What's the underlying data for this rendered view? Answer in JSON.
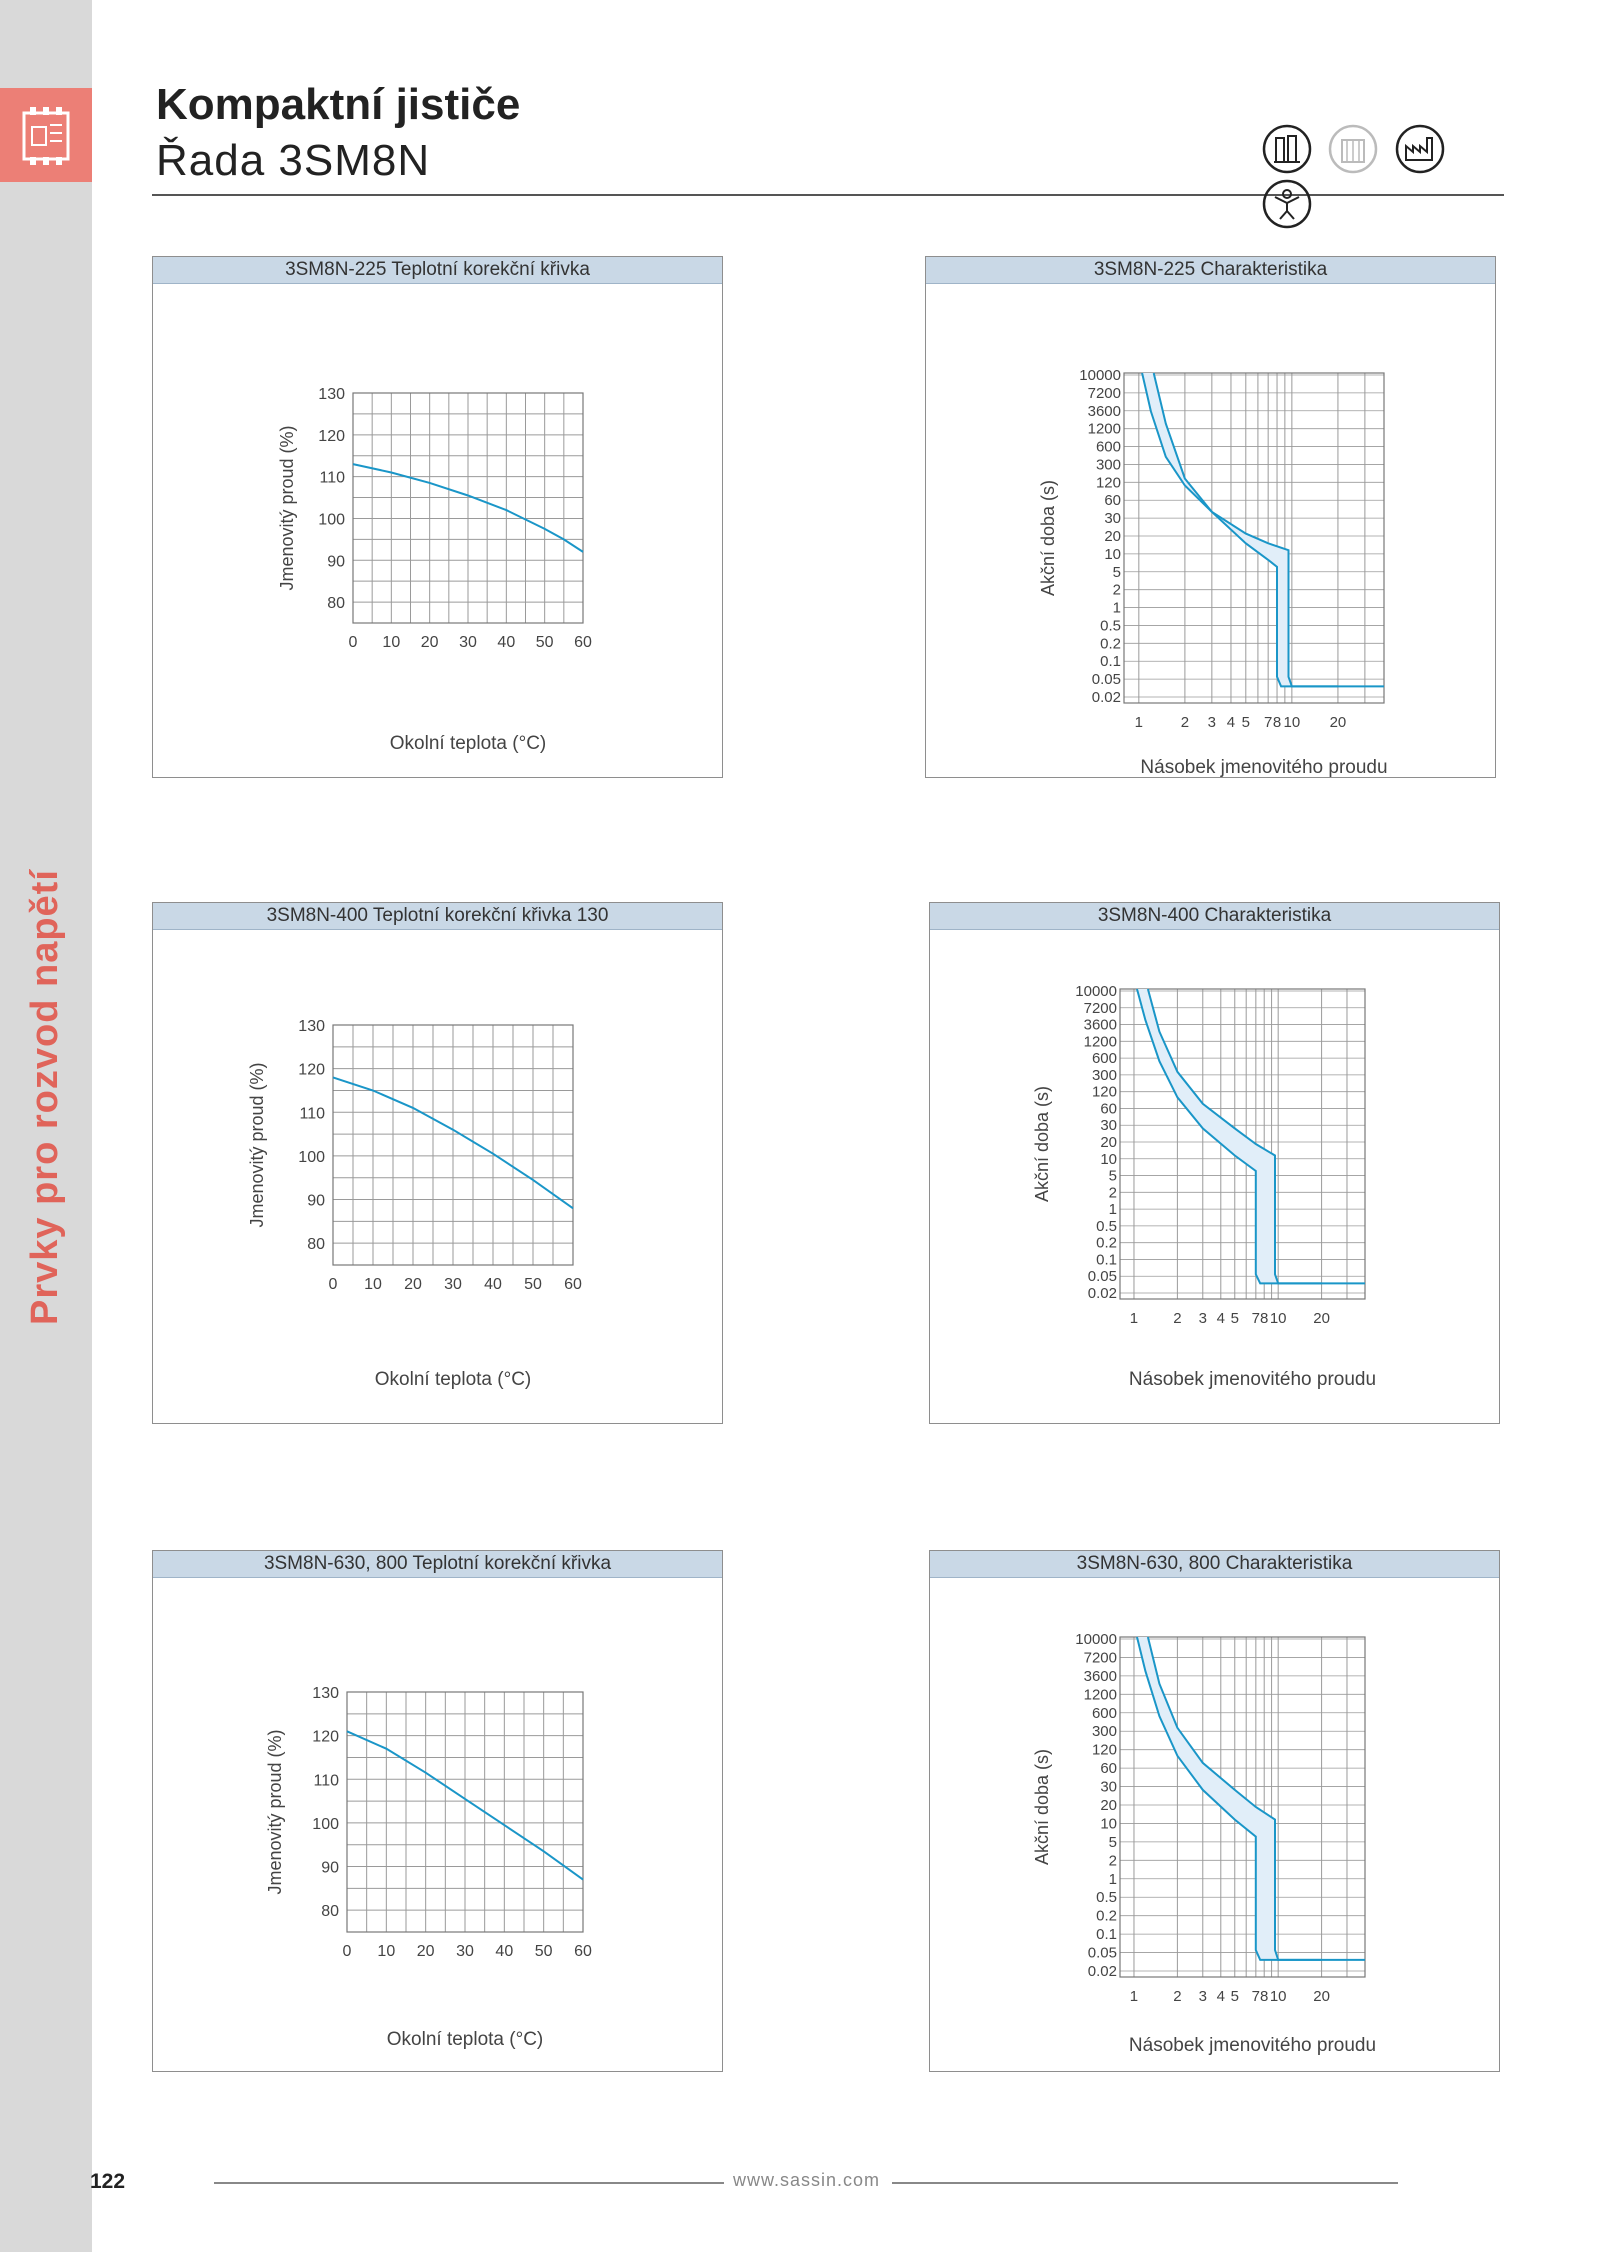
{
  "header": {
    "title": "Kompaktní jističe",
    "subtitle": "Řada 3SM8N"
  },
  "sidebar": {
    "section": "Prvky pro rozvod napětí",
    "page_number": "122"
  },
  "footer": {
    "url": "www.sassin.com"
  },
  "icons": [
    "electric-panel-icon",
    "building-icon",
    "factory-icon",
    "person-icon"
  ],
  "colors": {
    "curve": "#1a96c8",
    "band_fill": "#e1eef9",
    "accent": "#ec7f76",
    "panel_head": "#c9d8e6"
  },
  "panels": [
    {
      "title": "3SM8N-225 Teplotní korekční křivka",
      "kind": "temp",
      "xlabel": "Okolní teplota (°C)",
      "ylabel": "Jmenovitý proud (%)",
      "xticks": [
        "0",
        "10",
        "20",
        "30",
        "40",
        "50",
        "60"
      ],
      "yticks": [
        "130",
        "120",
        "110",
        "100",
        "90",
        "80"
      ]
    },
    {
      "title": "3SM8N-225 Charakteristika",
      "kind": "trip",
      "xlabel": "Násobek jmenovitého proudu",
      "ylabel": "Akční doba (s)",
      "xticks": [
        "1",
        "2",
        "3",
        "4",
        "5",
        "7",
        "8",
        "10",
        "20"
      ],
      "yticks": [
        "10000",
        "7200",
        "3600",
        "1200",
        "600",
        "300",
        "120",
        "60",
        "30",
        "20",
        "10",
        "5",
        "2",
        "1",
        "0.5",
        "0.2",
        "0.1",
        "0.05",
        "0.02"
      ]
    },
    {
      "title": "3SM8N-400 Teplotní korekční křivka 130",
      "kind": "temp",
      "xlabel": "Okolní teplota (°C)",
      "ylabel": "Jmenovitý proud (%)",
      "xticks": [
        "0",
        "10",
        "20",
        "30",
        "40",
        "50",
        "60"
      ],
      "yticks": [
        "130",
        "120",
        "110",
        "100",
        "90",
        "80"
      ]
    },
    {
      "title": "3SM8N-400 Charakteristika",
      "kind": "trip",
      "xlabel": "Násobek jmenovitého proudu",
      "ylabel": "Akční doba (s)",
      "xticks": [
        "1",
        "2",
        "3",
        "4",
        "5",
        "7",
        "8",
        "10",
        "20"
      ],
      "yticks": [
        "10000",
        "7200",
        "3600",
        "1200",
        "600",
        "300",
        "120",
        "60",
        "30",
        "20",
        "10",
        "5",
        "2",
        "1",
        "0.5",
        "0.2",
        "0.1",
        "0.05",
        "0.02"
      ]
    },
    {
      "title": "3SM8N-630, 800 Teplotní korekční křivka",
      "kind": "temp",
      "xlabel": "Okolní teplota (°C)",
      "ylabel": "Jmenovitý proud (%)",
      "xticks": [
        "0",
        "10",
        "20",
        "30",
        "40",
        "50",
        "60"
      ],
      "yticks": [
        "130",
        "120",
        "110",
        "100",
        "90",
        "80"
      ]
    },
    {
      "title": "3SM8N-630, 800 Charakteristika",
      "kind": "trip",
      "xlabel": "Násobek jmenovitého proudu",
      "ylabel": "Akční doba (s)",
      "xticks": [
        "1",
        "2",
        "3",
        "4",
        "5",
        "7",
        "8",
        "10",
        "20"
      ],
      "yticks": [
        "10000",
        "7200",
        "3600",
        "1200",
        "600",
        "300",
        "120",
        "60",
        "30",
        "20",
        "10",
        "5",
        "2",
        "1",
        "0.5",
        "0.2",
        "0.1",
        "0.05",
        "0.02"
      ]
    }
  ],
  "chart_data": [
    {
      "type": "line",
      "title": "3SM8N-225 Teplotní korekční křivka",
      "xlabel": "Okolní teplota (°C)",
      "ylabel": "Jmenovitý proud (%)",
      "xlim": [
        0,
        60
      ],
      "ylim": [
        75,
        130
      ],
      "grid": true,
      "series": [
        {
          "x": [
            0,
            10,
            20,
            30,
            40,
            50,
            55,
            60
          ],
          "y": [
            113,
            111,
            108.5,
            105.5,
            102,
            97.5,
            95,
            92
          ]
        }
      ]
    },
    {
      "type": "line",
      "title": "3SM8N-225 Charakteristika",
      "xlabel": "Násobek jmenovitého proudu",
      "ylabel": "Akční doba (s)",
      "yscale": "log",
      "grid": true,
      "series": [
        {
          "x": [
            1.05,
            1.2,
            1.5,
            2,
            3,
            5,
            7,
            9.5,
            9.5,
            10,
            20,
            40
          ],
          "y": [
            10000,
            2000,
            300,
            90,
            30,
            12,
            8,
            6,
            0.03,
            0.02,
            0.02,
            0.02
          ]
        },
        {
          "x": [
            1.25,
            1.5,
            2,
            3,
            5,
            7,
            8,
            8,
            8.5,
            20
          ],
          "y": [
            10000,
            1200,
            120,
            30,
            8,
            4,
            3,
            0.03,
            0.02,
            0.02
          ]
        }
      ]
    },
    {
      "type": "line",
      "title": "3SM8N-400 Teplotní korekční křivka 130",
      "xlabel": "Okolní teplota (°C)",
      "ylabel": "Jmenovitý proud (%)",
      "xlim": [
        0,
        60
      ],
      "ylim": [
        75,
        130
      ],
      "grid": true,
      "series": [
        {
          "x": [
            0,
            10,
            20,
            30,
            40,
            50,
            60
          ],
          "y": [
            118,
            115,
            111,
            106,
            100.5,
            94.5,
            88
          ]
        }
      ]
    },
    {
      "type": "line",
      "title": "3SM8N-400 Charakteristika",
      "xlabel": "Násobek jmenovitého proudu",
      "ylabel": "Akční doba (s)",
      "yscale": "log",
      "grid": true,
      "series": [
        {
          "x": [
            1.25,
            1.5,
            2,
            3,
            5,
            7,
            9.5,
            9.5,
            10,
            20,
            40
          ],
          "y": [
            10000,
            1500,
            250,
            60,
            20,
            10,
            6,
            0.03,
            0.02,
            0.02,
            0.02
          ]
        },
        {
          "x": [
            1.05,
            1.2,
            1.5,
            2,
            3,
            5,
            7,
            7,
            7.5,
            20
          ],
          "y": [
            10000,
            2500,
            400,
            80,
            20,
            6,
            3,
            0.03,
            0.02,
            0.02
          ]
        }
      ]
    },
    {
      "type": "line",
      "title": "3SM8N-630, 800 Teplotní korekční křivka",
      "xlabel": "Okolní teplota (°C)",
      "ylabel": "Jmenovitý proud (%)",
      "xlim": [
        0,
        60
      ],
      "ylim": [
        75,
        130
      ],
      "grid": true,
      "series": [
        {
          "x": [
            0,
            10,
            20,
            30,
            40,
            50,
            60
          ],
          "y": [
            121,
            117,
            111.5,
            105.5,
            99.5,
            93.5,
            87
          ]
        }
      ]
    },
    {
      "type": "line",
      "title": "3SM8N-630, 800 Charakteristika",
      "xlabel": "Násobek jmenovitého proudu",
      "ylabel": "Akční doba (s)",
      "yscale": "log",
      "grid": true,
      "series": [
        {
          "x": [
            1.25,
            1.5,
            2,
            3,
            5,
            7,
            9.5,
            9.5,
            10,
            20,
            40
          ],
          "y": [
            10000,
            1500,
            250,
            60,
            20,
            10,
            6,
            0.03,
            0.02,
            0.02,
            0.02
          ]
        },
        {
          "x": [
            1.05,
            1.2,
            1.5,
            2,
            3,
            5,
            7,
            7,
            7.5,
            20
          ],
          "y": [
            10000,
            2500,
            400,
            80,
            20,
            6,
            3,
            0.03,
            0.02,
            0.02
          ]
        }
      ]
    }
  ]
}
